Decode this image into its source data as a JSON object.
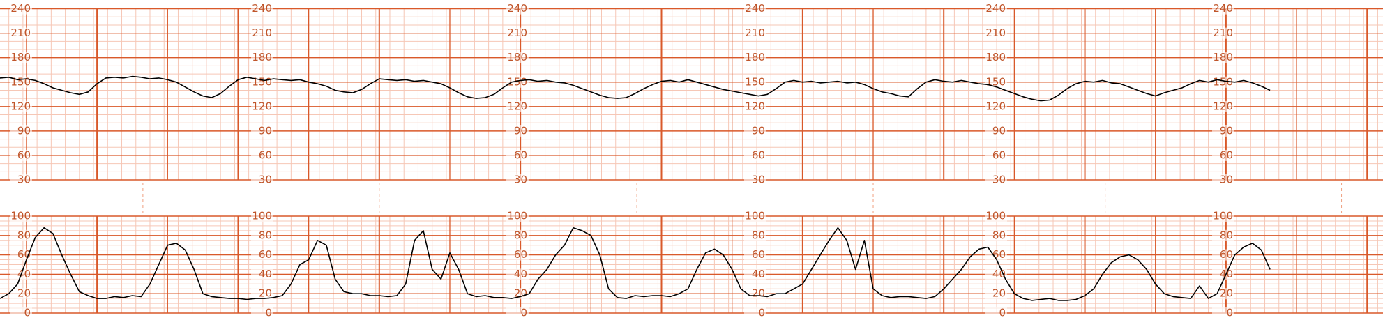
{
  "chart_data": [
    {
      "type": "line",
      "color": "#000000",
      "grid": true,
      "ylim": [
        30,
        240
      ],
      "yticks": [
        30,
        60,
        90,
        120,
        150,
        180,
        210,
        240
      ],
      "values": [
        155,
        156,
        153,
        154,
        152,
        148,
        143,
        140,
        137,
        135,
        138,
        148,
        155,
        156,
        155,
        157,
        156,
        154,
        155,
        153,
        150,
        144,
        138,
        133,
        131,
        136,
        145,
        153,
        156,
        154,
        152,
        154,
        153,
        152,
        153,
        150,
        148,
        145,
        140,
        138,
        137,
        141,
        148,
        154,
        153,
        152,
        153,
        151,
        152,
        150,
        148,
        143,
        137,
        132,
        130,
        131,
        135,
        143,
        150,
        152,
        153,
        151,
        152,
        150,
        149,
        146,
        142,
        138,
        134,
        131,
        130,
        131,
        136,
        142,
        147,
        151,
        152,
        150,
        153,
        150,
        147,
        144,
        141,
        139,
        137,
        135,
        133,
        135,
        142,
        150,
        152,
        150,
        151,
        149,
        150,
        151,
        149,
        150,
        147,
        142,
        138,
        136,
        133,
        132,
        142,
        150,
        153,
        151,
        150,
        152,
        150,
        148,
        147,
        144,
        140,
        136,
        132,
        129,
        127,
        128,
        134,
        142,
        148,
        151,
        150,
        152,
        149,
        148,
        144,
        140,
        136,
        133,
        137,
        140,
        143,
        148,
        152,
        150,
        153,
        151,
        150,
        152,
        149,
        145,
        140
      ]
    },
    {
      "type": "line",
      "color": "#000000",
      "grid": true,
      "ylim": [
        0,
        100
      ],
      "yticks": [
        0,
        20,
        40,
        60,
        80,
        100
      ],
      "values": [
        15,
        20,
        30,
        55,
        78,
        88,
        82,
        60,
        40,
        22,
        18,
        15,
        15,
        17,
        16,
        18,
        17,
        30,
        50,
        70,
        72,
        65,
        45,
        20,
        17,
        16,
        15,
        15,
        14,
        15,
        15,
        16,
        18,
        30,
        50,
        55,
        75,
        70,
        35,
        22,
        20,
        20,
        18,
        18,
        17,
        18,
        30,
        75,
        85,
        45,
        35,
        62,
        45,
        20,
        17,
        18,
        16,
        16,
        15,
        17,
        20,
        35,
        45,
        60,
        70,
        88,
        85,
        80,
        60,
        25,
        16,
        15,
        18,
        17,
        18,
        18,
        17,
        20,
        25,
        45,
        62,
        66,
        60,
        45,
        25,
        18,
        18,
        17,
        20,
        20,
        25,
        30,
        45,
        60,
        75,
        88,
        75,
        45,
        75,
        25,
        18,
        16,
        17,
        17,
        16,
        15,
        17,
        25,
        35,
        45,
        58,
        66,
        68,
        55,
        35,
        20,
        15,
        13,
        14,
        15,
        13,
        13,
        14,
        18,
        25,
        40,
        52,
        58,
        60,
        55,
        45,
        30,
        20,
        17,
        16,
        15,
        28,
        15,
        20,
        40,
        60,
        68,
        72,
        65,
        45
      ]
    }
  ]
}
